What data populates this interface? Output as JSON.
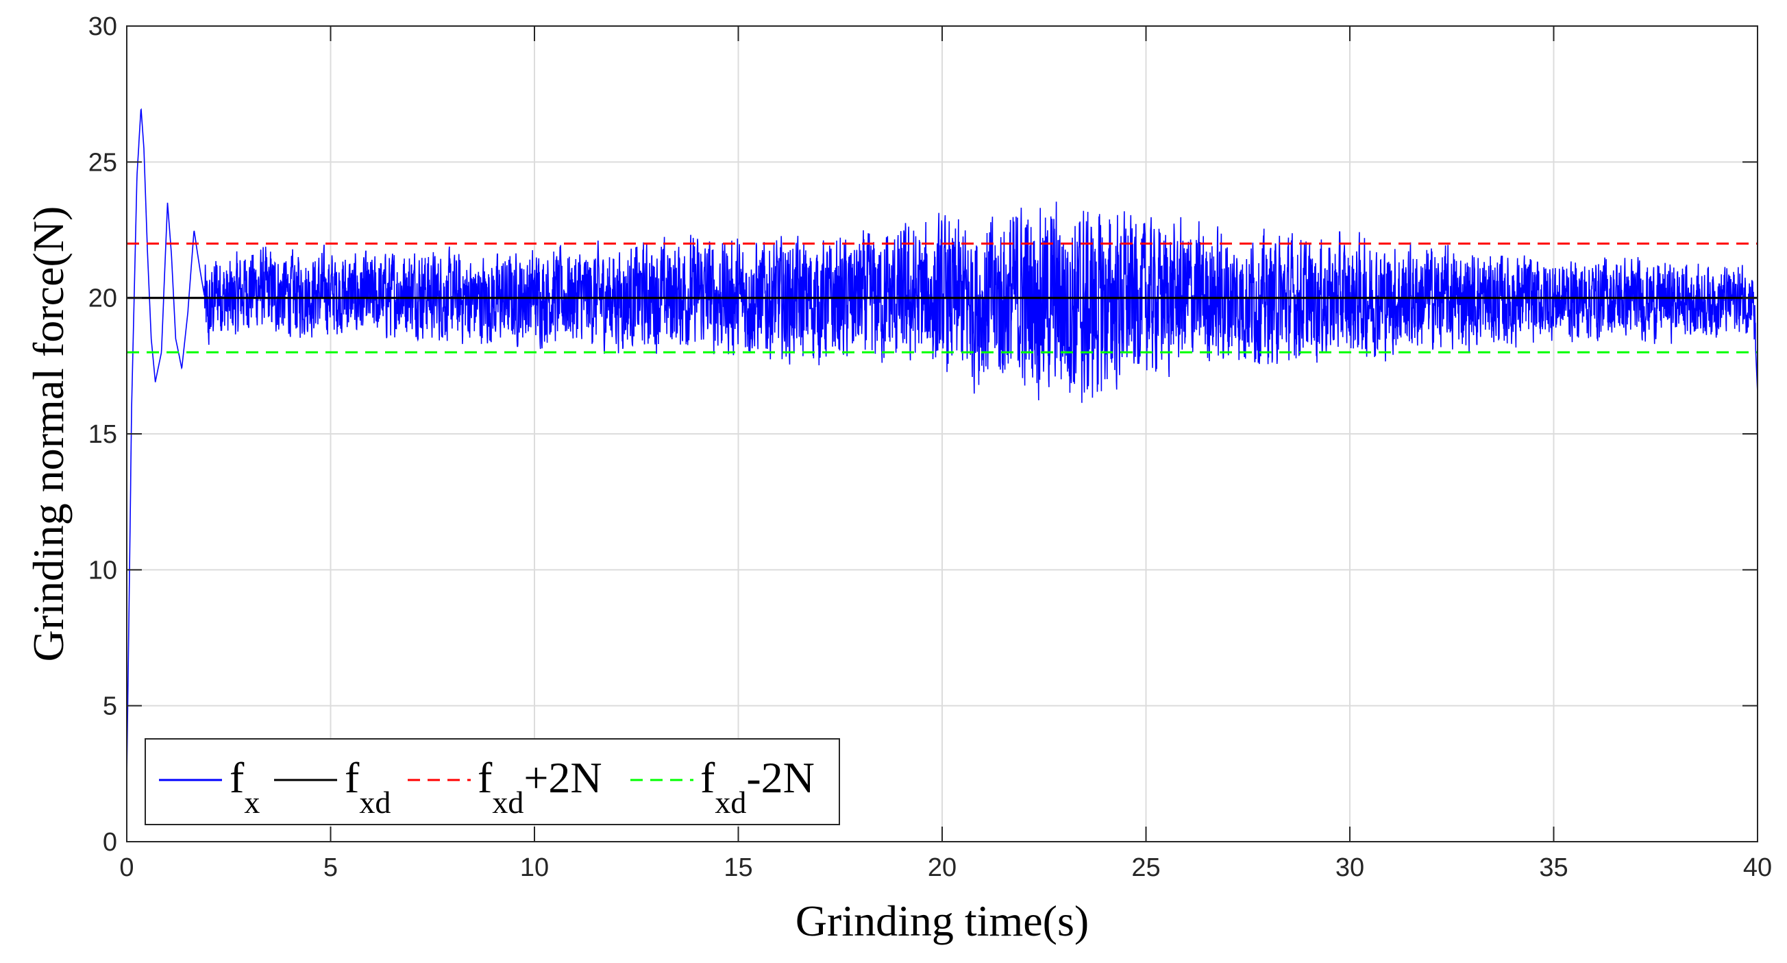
{
  "chart_data": {
    "type": "line",
    "title": "",
    "xlabel": "Grinding time(s)",
    "ylabel": "Grinding normal force(N)",
    "xlim": [
      0,
      40
    ],
    "ylim": [
      0,
      30
    ],
    "xticks": [
      0,
      5,
      10,
      15,
      20,
      25,
      30,
      35,
      40
    ],
    "yticks": [
      0,
      5,
      10,
      15,
      20,
      25,
      30
    ],
    "grid": true,
    "legend_position": "bottom-left",
    "series": [
      {
        "name": "fx",
        "legend_main": "f",
        "legend_sub": "x",
        "style": "solid",
        "color": "#0000ff",
        "x": [
          0,
          0.12,
          0.25,
          0.35,
          0.42,
          0.5,
          0.6,
          0.7,
          0.85,
          1.0,
          1.1,
          1.2,
          1.35,
          1.5,
          1.65,
          1.8,
          2.0,
          2.2,
          2.5,
          3.0,
          4.0,
          5.0,
          6.0,
          7.0,
          8.0,
          9.0,
          10.0,
          12.0,
          14.0,
          15.0,
          17.0,
          19.0,
          20.0,
          21.0,
          22.0,
          23.0,
          23.5,
          24.5,
          26.0,
          28.0,
          30.0,
          32.0,
          34.0,
          36.0,
          38.0,
          39.0,
          39.9,
          40.0
        ],
        "y": [
          2.3,
          16.0,
          24.5,
          27.0,
          25.5,
          22.0,
          18.5,
          16.9,
          18.0,
          23.5,
          21.5,
          18.5,
          17.4,
          19.5,
          22.5,
          21.0,
          19.2,
          20.3,
          19.8,
          20.4,
          20.1,
          20.2,
          20.0,
          20.3,
          20.0,
          19.9,
          20.1,
          20.0,
          20.2,
          20.0,
          19.9,
          20.0,
          20.0,
          19.8,
          20.1,
          19.9,
          19.6,
          20.0,
          20.1,
          19.9,
          20.0,
          20.0,
          19.9,
          20.0,
          19.9,
          19.9,
          20.0,
          16.5
        ],
        "noise_amplitude": {
          "t": [
            2,
            5,
            10,
            15,
            18,
            20,
            22,
            23.5,
            25,
            28,
            30,
            35,
            38,
            40
          ],
          "amp": [
            2.0,
            2.0,
            2.2,
            2.8,
            3.0,
            3.6,
            4.4,
            4.8,
            3.6,
            3.0,
            2.8,
            2.0,
            1.8,
            1.6
          ]
        }
      },
      {
        "name": "fxd",
        "legend_main": "f",
        "legend_sub": "xd",
        "style": "solid",
        "color": "#000000",
        "x": [
          0,
          40
        ],
        "y": [
          20,
          20
        ]
      },
      {
        "name": "fxd+2N",
        "legend_main": "f",
        "legend_sub": "xd",
        "legend_suffix": "+2N",
        "style": "dashed",
        "color": "#ff0000",
        "x": [
          0,
          40
        ],
        "y": [
          22,
          22
        ]
      },
      {
        "name": "fxd-2N",
        "legend_main": "f",
        "legend_sub": "xd",
        "legend_suffix": "-2N",
        "style": "dashed",
        "color": "#00ff00",
        "x": [
          0,
          40
        ],
        "y": [
          18,
          18
        ]
      }
    ]
  }
}
